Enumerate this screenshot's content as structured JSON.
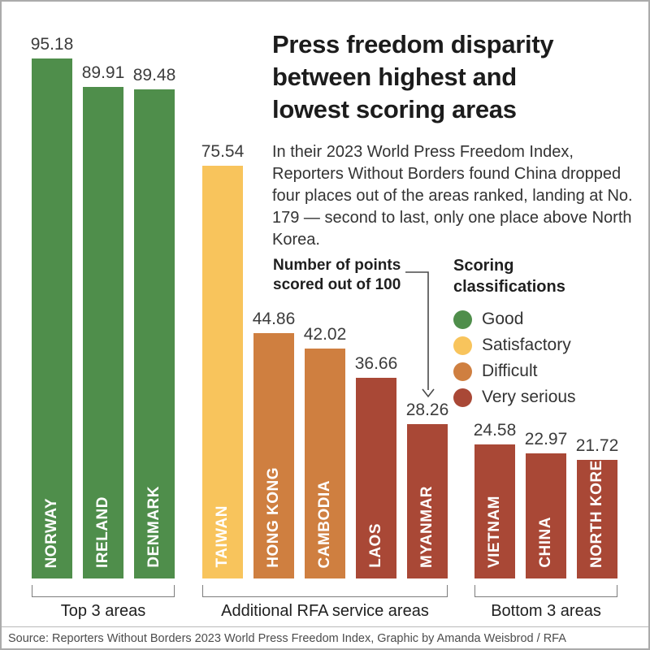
{
  "header": {
    "title_lines": [
      "Press freedom disparity",
      "between highest and",
      "lowest scoring areas"
    ],
    "intro": "In their 2023 World Press Freedom Index, Reporters Without Borders found China dropped four places out of the areas ranked, landing at No. 179 — second to last, only one place above North Korea."
  },
  "annotation": {
    "lines": [
      "Number of points",
      "scored out of 100"
    ]
  },
  "legend": {
    "title_lines": [
      "Scoring",
      "classifications"
    ],
    "items": [
      {
        "label": "Good",
        "color": "#4f8e4b"
      },
      {
        "label": "Satisfactory",
        "color": "#f8c45c"
      },
      {
        "label": "Difficult",
        "color": "#cf7f40"
      },
      {
        "label": "Very serious",
        "color": "#a94836"
      }
    ]
  },
  "chart_data": {
    "type": "bar",
    "title": "Press freedom disparity between highest and lowest scoring areas",
    "ylabel": "Number of points scored out of 100",
    "ylim": [
      0,
      100
    ],
    "legend_position": "right",
    "grid": false,
    "groups": [
      {
        "label": "Top 3 areas",
        "bars": [
          {
            "name": "NORWAY",
            "value": 95.18,
            "classification": "Good",
            "color": "#4f8e4b"
          },
          {
            "name": "IRELAND",
            "value": 89.91,
            "classification": "Good",
            "color": "#4f8e4b"
          },
          {
            "name": "DENMARK",
            "value": 89.48,
            "classification": "Good",
            "color": "#4f8e4b"
          }
        ]
      },
      {
        "label": "Additional RFA service areas",
        "bars": [
          {
            "name": "TAIWAN",
            "value": 75.54,
            "classification": "Satisfactory",
            "color": "#f8c45c"
          },
          {
            "name": "HONG KONG",
            "value": 44.86,
            "classification": "Difficult",
            "color": "#cf7f40"
          },
          {
            "name": "CAMBODIA",
            "value": 42.02,
            "classification": "Difficult",
            "color": "#cf7f40"
          },
          {
            "name": "LAOS",
            "value": 36.66,
            "classification": "Very serious",
            "color": "#a94836"
          },
          {
            "name": "MYANMAR",
            "value": 28.26,
            "classification": "Very serious",
            "color": "#a94836"
          }
        ]
      },
      {
        "label": "Bottom 3 areas",
        "bars": [
          {
            "name": "VIETNAM",
            "value": 24.58,
            "classification": "Very serious",
            "color": "#a94836"
          },
          {
            "name": "CHINA",
            "value": 22.97,
            "classification": "Very serious",
            "color": "#a94836"
          },
          {
            "name": "NORTH KOREA",
            "value": 21.72,
            "classification": "Very serious",
            "color": "#a94836"
          }
        ]
      }
    ]
  },
  "source": {
    "text": "Source: Reporters Without Borders 2023 World Press Freedom Index, Graphic by Amanda Weisbrod / RFA"
  }
}
